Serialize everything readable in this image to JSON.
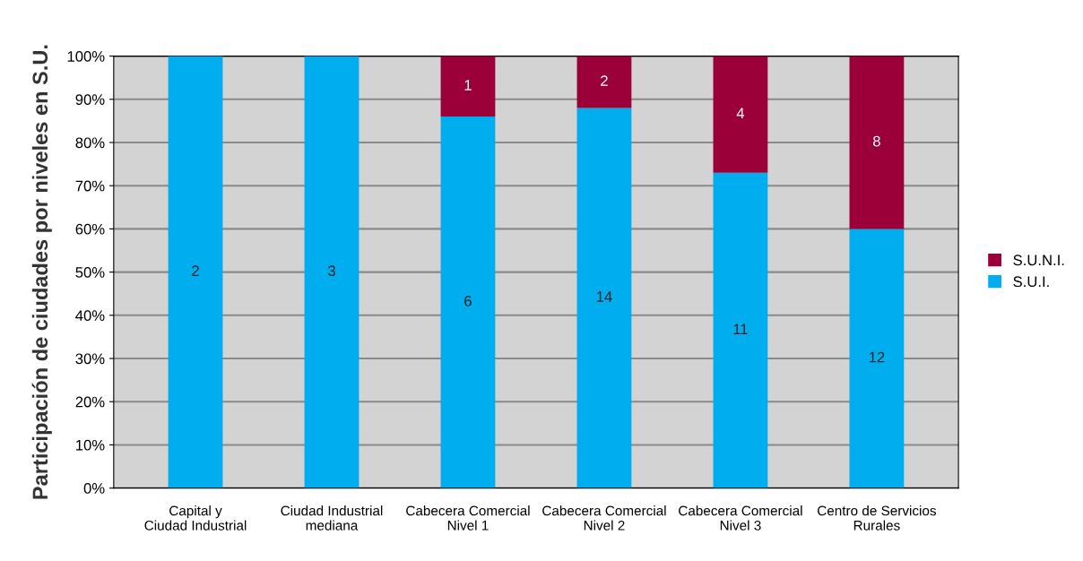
{
  "chart_data": {
    "type": "bar",
    "stacked": true,
    "ylabel": "Participación de ciudades por niveles en S.U.",
    "categories": [
      "Capital y\nCiudad Industrial",
      "Ciudad Industrial\nmediana",
      "Cabecera Comercial\nNivel 1",
      "Cabecera Comercial\nNivel 2",
      "Cabecera Comercial\nNivel 3",
      "Centro de Servicios\nRurales"
    ],
    "series": [
      {
        "name": "S.U.I.",
        "color": "#00aeef",
        "values": [
          100,
          100,
          86,
          88,
          73,
          60
        ]
      },
      {
        "name": "S.U.N.I.",
        "color": "#9b0038",
        "values": [
          0,
          0,
          14,
          12,
          27,
          40
        ]
      }
    ],
    "annotations": [
      "2",
      "3",
      "6",
      "1",
      "14",
      "2",
      "11",
      "4",
      "12",
      "8"
    ],
    "ylim": [
      0,
      100
    ],
    "yticks": [
      {
        "value": 0,
        "label": "0%"
      },
      {
        "value": 10,
        "label": "10%"
      },
      {
        "value": 20,
        "label": "20%"
      },
      {
        "value": 30,
        "label": "30%"
      },
      {
        "value": 40,
        "label": "40%"
      },
      {
        "value": 50,
        "label": "50%"
      },
      {
        "value": 60,
        "label": "60%"
      },
      {
        "value": 70,
        "label": "70%"
      },
      {
        "value": 80,
        "label": "80%"
      },
      {
        "value": 90,
        "label": "90%"
      },
      {
        "value": 100,
        "label": "100%"
      }
    ],
    "grid": "y",
    "legend": "right"
  }
}
